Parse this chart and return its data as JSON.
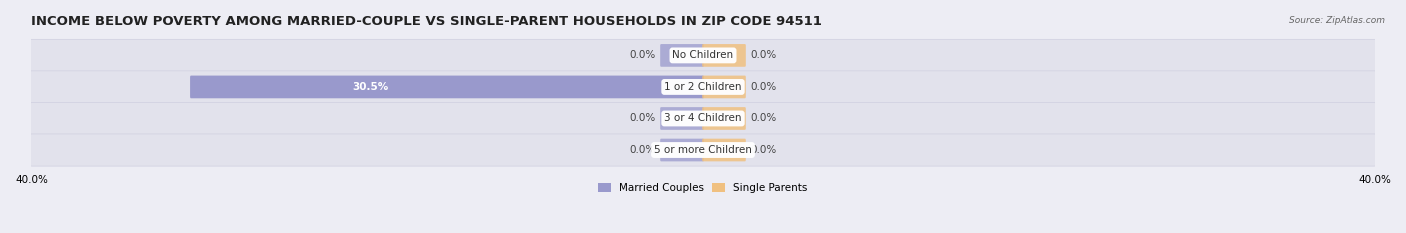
{
  "title": "INCOME BELOW POVERTY AMONG MARRIED-COUPLE VS SINGLE-PARENT HOUSEHOLDS IN ZIP CODE 94511",
  "source": "Source: ZipAtlas.com",
  "categories": [
    "No Children",
    "1 or 2 Children",
    "3 or 4 Children",
    "5 or more Children"
  ],
  "married_values": [
    0.0,
    30.5,
    0.0,
    0.0
  ],
  "single_values": [
    0.0,
    0.0,
    0.0,
    0.0
  ],
  "married_color": "#9999cc",
  "single_color": "#f0c080",
  "stub_size": 2.5,
  "xlim_left": -40,
  "xlim_right": 40,
  "background_color": "#ededf4",
  "bar_background_color": "#e2e2ec",
  "bar_bg_border_color": "#d0d0e0",
  "title_fontsize": 9.5,
  "label_fontsize": 7.5,
  "cat_fontsize": 7.5,
  "bar_height": 0.62,
  "bar_gap": 0.1
}
